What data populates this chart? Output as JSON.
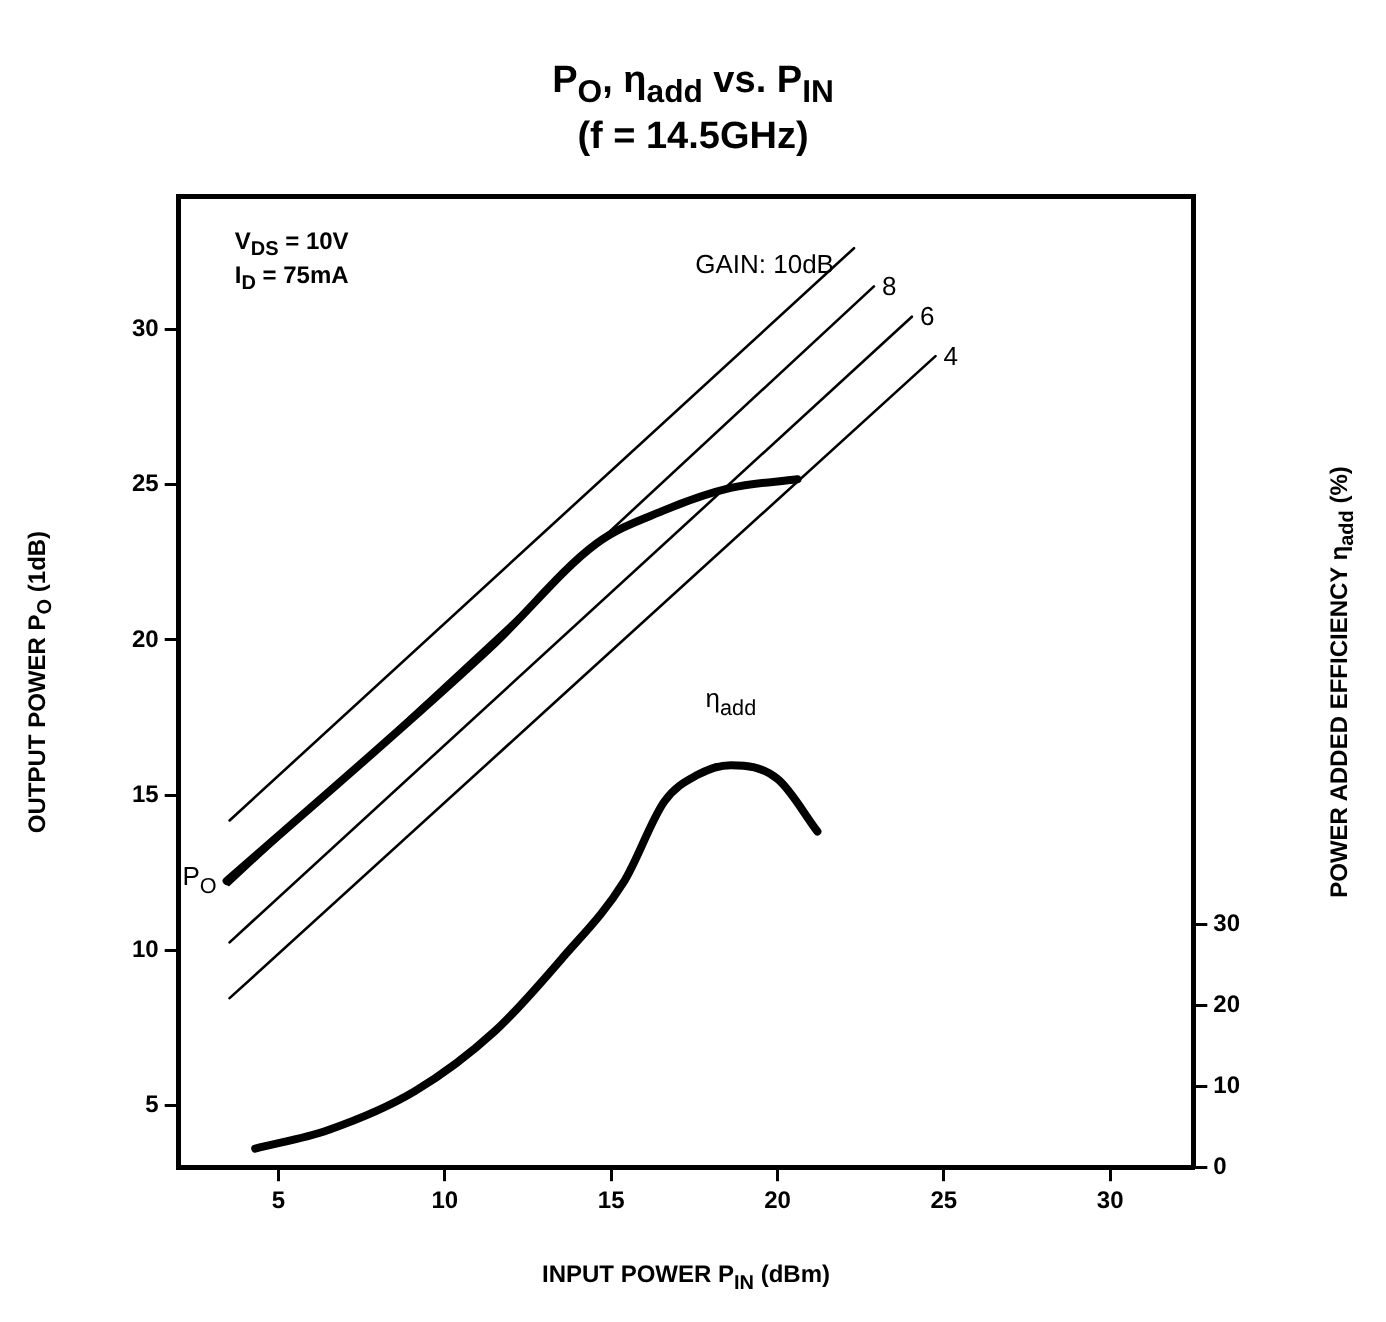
{
  "chart_data": {
    "type": "line",
    "title": "P$_{O}$, η$_{add}$ vs. P$_{IN}$",
    "subtitle": "(f = 14.5GHz)",
    "xlabel": "INPUT POWER P$_{IN}$ (dBm)",
    "ylabel": "OUTPUT POWER P$_{O}$ (1dB)",
    "y2label": "POWER ADDED EFFICIENCY η$_{add}$ (%)",
    "xlim": [
      2,
      32.5
    ],
    "xticks": [
      5,
      10,
      15,
      20,
      25,
      30
    ],
    "ylim": [
      3,
      34.3
    ],
    "yticks": [
      5,
      10,
      15,
      20,
      25,
      30
    ],
    "y2lim": [
      0,
      120
    ],
    "y2ticks": [
      0,
      10,
      20,
      30
    ],
    "grid": false,
    "legend": false,
    "marker": "none",
    "line_style": "solid",
    "series": [
      {
        "name": "GAIN: 10dB",
        "color": "#000000",
        "x": [
          3.53,
          22.3
        ],
        "values": [
          14.18,
          32.63
        ]
      },
      {
        "name": "8",
        "color": "#000000",
        "x": [
          3.5,
          22.9
        ],
        "values": [
          12.1,
          31.4
        ]
      },
      {
        "name": "6",
        "color": "#000000",
        "x": [
          3.53,
          24.04
        ],
        "values": [
          10.25,
          30.42
        ]
      },
      {
        "name": "4",
        "color": "#000000",
        "x": [
          3.53,
          24.75
        ],
        "values": [
          8.45,
          29.15
        ]
      },
      {
        "name": "P$_{O}$",
        "color": "#000000",
        "x": [
          3.44,
          8.48,
          11.52,
          14.55,
          16.55,
          18.59,
          20.6
        ],
        "values": [
          12.23,
          16.96,
          19.91,
          23.1,
          24.16,
          24.9,
          25.18
        ]
      },
      {
        "name": "η$_{add}$",
        "color": "#000000",
        "axis": "y2",
        "x": [
          4.3,
          6.5,
          9.1,
          11.5,
          13.5,
          15.4,
          16.6,
          17.6,
          18.6,
          20.0,
          21.2
        ],
        "values": [
          2.3,
          4.6,
          9.4,
          16.8,
          25.7,
          35.4,
          45.2,
          48.5,
          49.7,
          48.0,
          41.5
        ]
      }
    ],
    "annotations": [
      "V$_{DS}$ = 10V",
      "I$_{D}$ = 75mA"
    ]
  }
}
